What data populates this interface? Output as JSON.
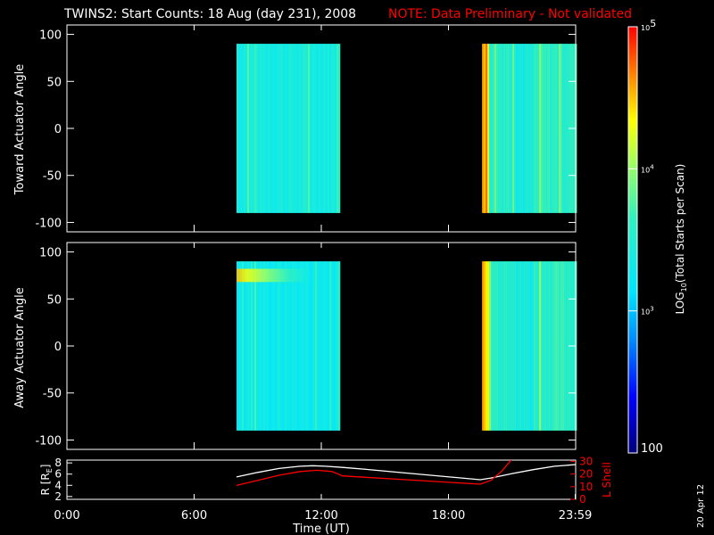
{
  "title": "TWINS2: Start Counts: 18 Aug (day 231), 2008",
  "note": "NOTE: Data Preliminary - Not validated",
  "date_stamp": "20 Apr 12",
  "colors": {
    "background": "#000000",
    "text": "#ffffff",
    "note": "#ff0000",
    "ephem_R": "#ffffff",
    "ephem_L": "#ff0000"
  },
  "colorbar": {
    "label_prefix": "LOG",
    "label_sub": "10",
    "label_suffix": "(Total Starts per Scan)",
    "ticks": [
      {
        "value": 100,
        "base": "100",
        "exp": ""
      },
      {
        "value": 1000,
        "base": "10",
        "exp": "3"
      },
      {
        "value": 10000,
        "base": "10",
        "exp": "4"
      },
      {
        "value": 100000,
        "base": "10",
        "exp": "5"
      }
    ]
  },
  "chart_data": [
    {
      "type": "heatmap",
      "panel": "toward",
      "ylabel": "Toward Actuator Angle",
      "xlim_hours": [
        0,
        24
      ],
      "ylim": [
        -110,
        110
      ],
      "yticks": [
        "100",
        "50",
        "0",
        "-50",
        "-100"
      ],
      "ytick_values": [
        100,
        50,
        0,
        -50,
        -100
      ],
      "data_angle_range": [
        -90,
        90
      ],
      "data_intervals": [
        {
          "start_time": "08:00",
          "end_time": "12:50",
          "typical_log10_counts": 3.4,
          "range_log10": [
            3.3,
            3.8
          ]
        },
        {
          "start_time": "19:35",
          "end_time": "24:00",
          "typical_log10_counts": 3.6,
          "range_log10": [
            3.2,
            4.6
          ]
        }
      ],
      "color_scale": "log",
      "zlim": [
        100,
        100000
      ]
    },
    {
      "type": "heatmap",
      "panel": "away",
      "ylabel": "Away Actuator Angle",
      "xlim_hours": [
        0,
        24
      ],
      "ylim": [
        -110,
        110
      ],
      "yticks": [
        "100",
        "50",
        "0",
        "-50",
        "-100"
      ],
      "ytick_values": [
        100,
        50,
        0,
        -50,
        -100
      ],
      "data_angle_range": [
        -90,
        90
      ],
      "data_intervals": [
        {
          "start_time": "08:00",
          "end_time": "12:50",
          "typical_log10_counts": 3.3,
          "range_log10": [
            3.1,
            4.5
          ],
          "hot_band_angle": [
            68,
            82
          ]
        },
        {
          "start_time": "19:35",
          "end_time": "24:00",
          "typical_log10_counts": 3.6,
          "range_log10": [
            3.2,
            4.6
          ]
        }
      ],
      "color_scale": "log",
      "zlim": [
        100,
        100000
      ]
    },
    {
      "type": "line",
      "panel": "ephemeris",
      "xlabel": "Time (UT)",
      "xticks": [
        "0:00",
        "6:00",
        "12:00",
        "18:00",
        "23:59"
      ],
      "xtick_hours": [
        0,
        6,
        12,
        18,
        23.98
      ],
      "ylabel_left": "R [R",
      "ylabel_left_sub": "E",
      "ylabel_left_end": "]",
      "ylim_left": [
        1.5,
        8.5
      ],
      "yticks_left": [
        "8",
        "6",
        "4",
        "2"
      ],
      "ytick_values_left": [
        8,
        6,
        4,
        2
      ],
      "ylabel_right": "L Shell",
      "ylim_right": [
        0,
        31
      ],
      "yticks_right": [
        "30",
        "20",
        "10",
        "0"
      ],
      "ytick_values_right": [
        30,
        20,
        10,
        0
      ],
      "series": [
        {
          "name": "R [RE]",
          "axis": "left",
          "x_hours": [
            8,
            9,
            10,
            11,
            11.6,
            12.2,
            13,
            14,
            16,
            19.5,
            20,
            21,
            22,
            23,
            24
          ],
          "values": [
            5.5,
            6.3,
            7.0,
            7.4,
            7.5,
            7.4,
            7.2,
            6.9,
            6.2,
            5.0,
            5.3,
            6.1,
            6.8,
            7.4,
            7.7
          ]
        },
        {
          "name": "L Shell",
          "axis": "right",
          "x_hours": [
            8,
            9,
            10,
            11,
            11.8,
            12.5,
            13,
            14,
            16,
            19.5,
            20,
            20.5,
            21
          ],
          "values": [
            11,
            15,
            19,
            22,
            23,
            22,
            18.5,
            17.5,
            15.5,
            12,
            15,
            22,
            32
          ]
        }
      ]
    }
  ]
}
